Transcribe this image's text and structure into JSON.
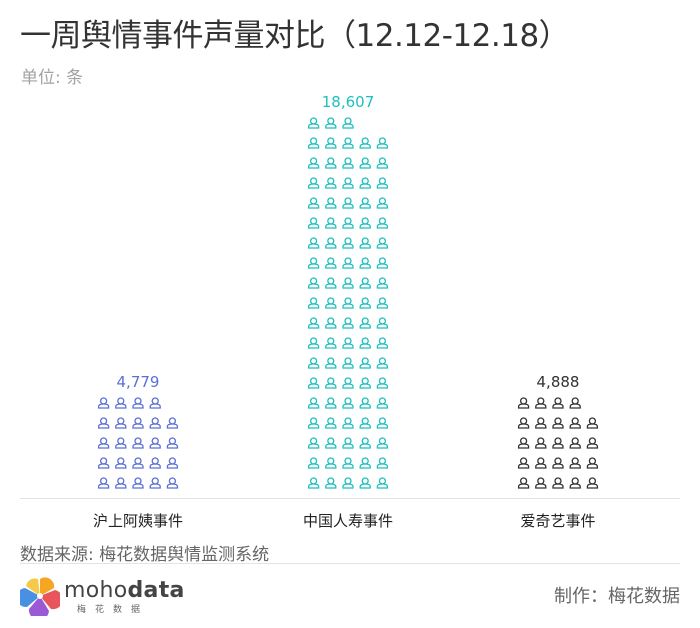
{
  "title": "一周舆情事件声量对比（12.12-12.18）",
  "unit_label": "单位: 条",
  "chart_data": {
    "type": "bar",
    "style": "pictograph",
    "icon": "person-icon",
    "categories": [
      "沪上阿姨事件",
      "中国人寿事件",
      "爱奇艺事件"
    ],
    "values": [
      4779,
      18607,
      4888
    ],
    "value_labels": [
      "4,779",
      "18,607",
      "4,888"
    ],
    "colors": [
      "#5b6fd6",
      "#1fbfbf",
      "#333333"
    ]
  },
  "source": "数据来源: 梅花数据舆情监测系统",
  "logo": {
    "word_regular": "moho",
    "word_bold": "data",
    "sub": "梅花数据"
  },
  "credit": "制作：梅花数据"
}
